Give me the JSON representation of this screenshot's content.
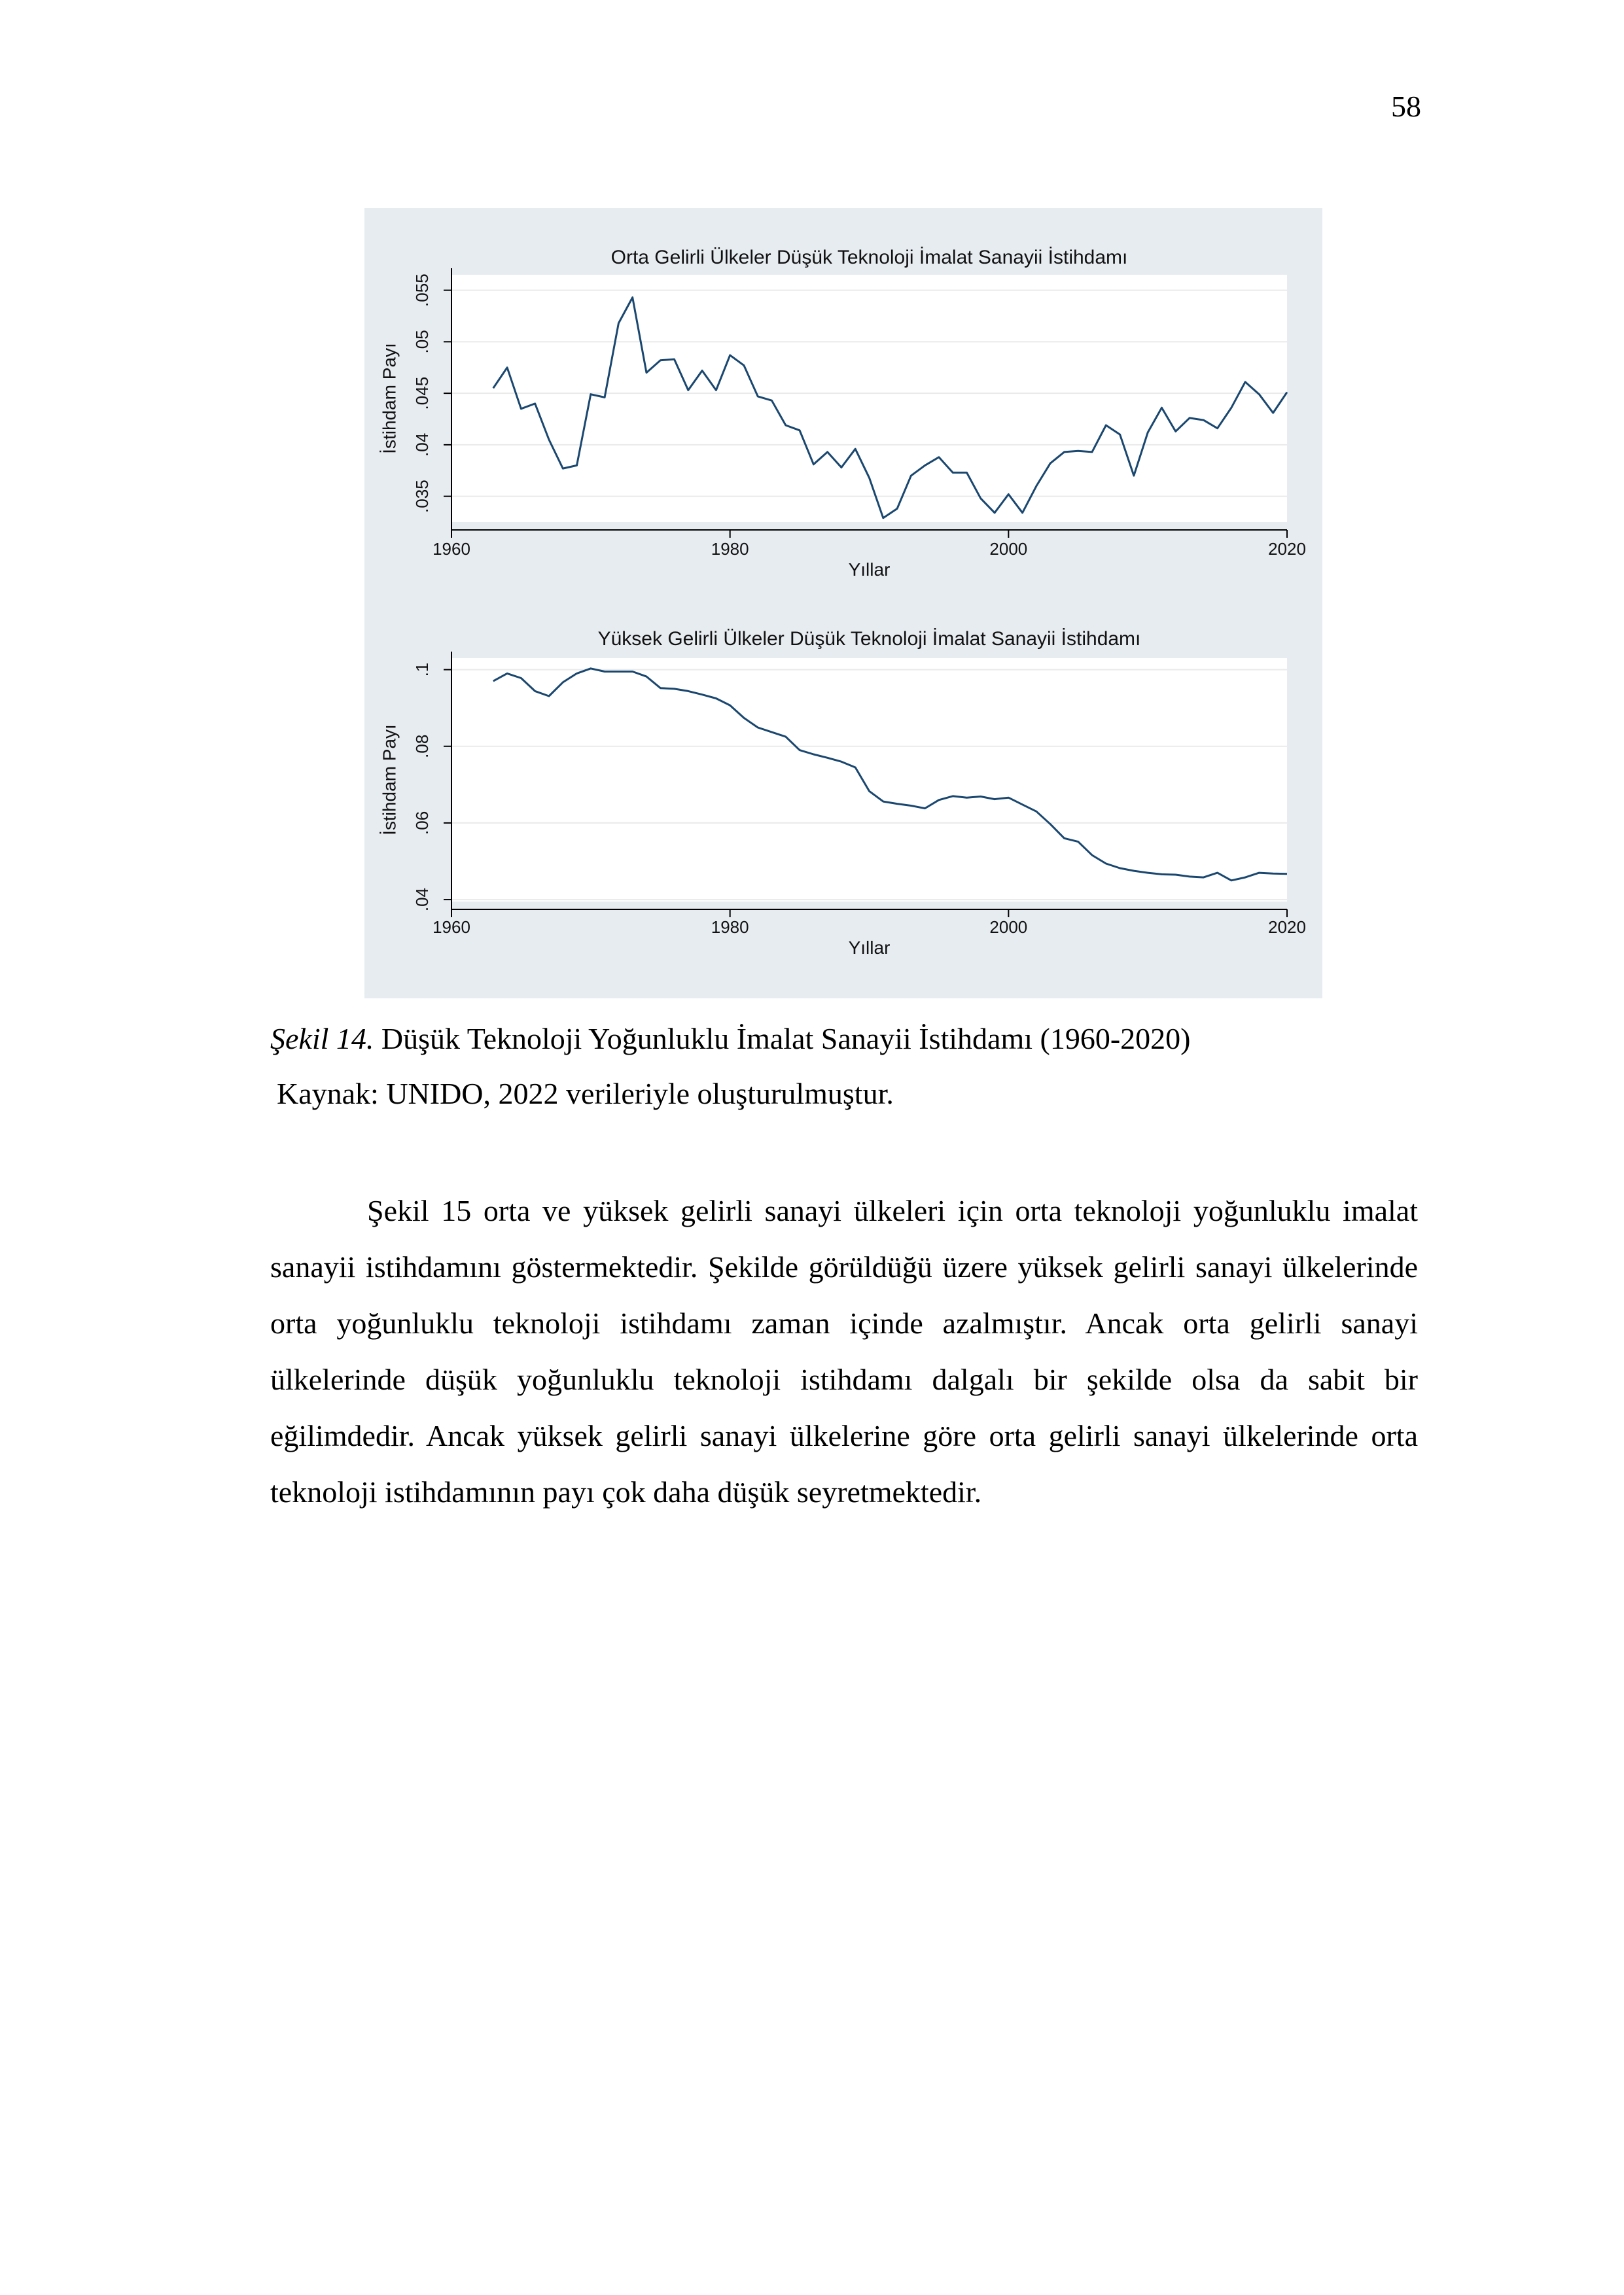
{
  "page_number": "58",
  "figure": {
    "background": "#e7ecf1",
    "line_color": "#1a476f",
    "caption_label": "Şekil 14.",
    "caption_text": " Düşük Teknoloji Yoğunluklu İmalat Sanayii İstihdamı (1960-2020)",
    "source": "Kaynak: UNIDO, 2022 verileriyle oluşturulmuştur."
  },
  "chart_data": [
    {
      "type": "line",
      "title": "Orta Gelirli Ülkeler Düşük Teknoloji İmalat Sanayii İstihdamı",
      "xlabel": "Yıllar",
      "ylabel": "İstihdam Payı",
      "xlim": [
        1960,
        2020
      ],
      "ylim": [
        0.0325,
        0.0565
      ],
      "x_ticks": [
        "1960",
        "1980",
        "2000",
        "2020"
      ],
      "y_ticks": [
        ".035",
        ".04",
        ".045",
        ".05",
        ".055"
      ],
      "grid": true,
      "x": [
        1963,
        1964,
        1965,
        1966,
        1967,
        1968,
        1969,
        1970,
        1971,
        1972,
        1973,
        1974,
        1975,
        1976,
        1977,
        1978,
        1979,
        1980,
        1981,
        1982,
        1983,
        1984,
        1985,
        1986,
        1987,
        1988,
        1989,
        1990,
        1991,
        1992,
        1993,
        1994,
        1995,
        1996,
        1997,
        1998,
        1999,
        2000,
        2001,
        2002,
        2003,
        2004,
        2005,
        2006,
        2007,
        2008,
        2009,
        2010,
        2011,
        2012,
        2013,
        2014,
        2015,
        2016,
        2017,
        2018,
        2019,
        2020
      ],
      "values": [
        0.0455,
        0.0475,
        0.0435,
        0.044,
        0.0405,
        0.0377,
        0.038,
        0.0449,
        0.0446,
        0.0518,
        0.0543,
        0.047,
        0.0482,
        0.0483,
        0.0453,
        0.0472,
        0.0453,
        0.0487,
        0.0477,
        0.0447,
        0.0443,
        0.0419,
        0.0414,
        0.0381,
        0.0393,
        0.0378,
        0.0396,
        0.0368,
        0.0329,
        0.0338,
        0.037,
        0.038,
        0.0388,
        0.0373,
        0.0373,
        0.0348,
        0.0334,
        0.0352,
        0.0334,
        0.036,
        0.0382,
        0.0393,
        0.0394,
        0.0393,
        0.0419,
        0.041,
        0.037,
        0.0412,
        0.0436,
        0.0413,
        0.0426,
        0.0424,
        0.0416,
        0.0436,
        0.0461,
        0.0449,
        0.0431,
        0.0451
      ]
    },
    {
      "type": "line",
      "title": "Yüksek Gelirli Ülkeler Düşük Teknoloji İmalat Sanayii İstihdamı",
      "xlabel": "Yıllar",
      "ylabel": "İstihdam Payı",
      "xlim": [
        1960,
        2020
      ],
      "ylim": [
        0.0395,
        0.103
      ],
      "x_ticks": [
        "1960",
        "1980",
        "2000",
        "2020"
      ],
      "y_ticks": [
        ".04",
        ".06",
        ".08",
        ".1"
      ],
      "grid": true,
      "x": [
        1963,
        1964,
        1965,
        1966,
        1967,
        1968,
        1969,
        1970,
        1971,
        1972,
        1973,
        1974,
        1975,
        1976,
        1977,
        1978,
        1979,
        1980,
        1981,
        1982,
        1983,
        1984,
        1985,
        1986,
        1987,
        1988,
        1989,
        1990,
        1991,
        1992,
        1993,
        1994,
        1995,
        1996,
        1997,
        1998,
        1999,
        2000,
        2001,
        2002,
        2003,
        2004,
        2005,
        2006,
        2007,
        2008,
        2009,
        2010,
        2011,
        2012,
        2013,
        2014,
        2015,
        2016,
        2017,
        2018,
        2019,
        2020
      ],
      "values": [
        0.097,
        0.099,
        0.0978,
        0.0944,
        0.0931,
        0.0967,
        0.099,
        0.1003,
        0.0995,
        0.0995,
        0.0995,
        0.0982,
        0.0952,
        0.095,
        0.0944,
        0.0935,
        0.0925,
        0.0907,
        0.0874,
        0.0849,
        0.0837,
        0.0825,
        0.079,
        0.0779,
        0.077,
        0.076,
        0.0745,
        0.0683,
        0.0656,
        0.065,
        0.0645,
        0.0638,
        0.066,
        0.067,
        0.0666,
        0.0669,
        0.0662,
        0.0666,
        0.0648,
        0.063,
        0.0597,
        0.056,
        0.0551,
        0.0516,
        0.0494,
        0.0482,
        0.0475,
        0.047,
        0.0466,
        0.0465,
        0.046,
        0.0458,
        0.047,
        0.045,
        0.0458,
        0.047,
        0.0468,
        0.0467
      ]
    }
  ],
  "body_paragraph": "Şekil 15 orta ve yüksek gelirli sanayi ülkeleri için orta teknoloji yoğunluklu imalat sanayii istihdamını göstermektedir. Şekilde görüldüğü üzere yüksek gelirli sanayi ülkelerinde orta yoğunluklu teknoloji istihdamı zaman içinde azalmıştır. Ancak orta gelirli sanayi ülkelerinde düşük yoğunluklu teknoloji istihdamı dalgalı bir şekilde olsa da sabit bir eğilimdedir. Ancak yüksek gelirli sanayi ülkelerine göre orta gelirli sanayi ülkelerinde orta teknoloji istihdamının payı çok daha düşük seyretmektedir."
}
